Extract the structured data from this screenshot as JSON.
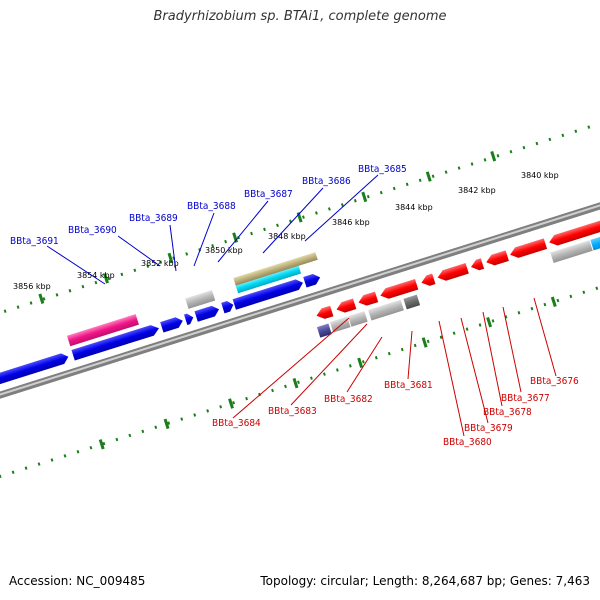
{
  "title": "Bradyrhizobium sp. BTAi1, complete genome",
  "footer": {
    "accession": "Accession: NC_009485",
    "summary": "Topology: circular; Length: 8,264,687 bp; Genes: 7,463"
  },
  "colors": {
    "forward_label": "#0000cc",
    "reverse_label": "#cc0000",
    "backbone": "#7f7f7f",
    "ticks": "#1a7f1a"
  },
  "kbp_labels": [
    "3856 kbp",
    "3854 kbp",
    "3852 kbp",
    "3850 kbp",
    "3848 kbp",
    "3846 kbp",
    "3844 kbp",
    "3842 kbp",
    "3840 kbp"
  ],
  "forward_genes": [
    "BBta_3691",
    "BBta_3690",
    "BBta_3689",
    "BBta_3688",
    "BBta_3687",
    "BBta_3686",
    "BBta_3685"
  ],
  "reverse_genes": [
    "BBta_3684",
    "BBta_3683",
    "BBta_3682",
    "BBta_3681",
    "BBta_3680",
    "BBta_3679",
    "BBta_3678",
    "BBta_3677",
    "BBta_3676"
  ]
}
